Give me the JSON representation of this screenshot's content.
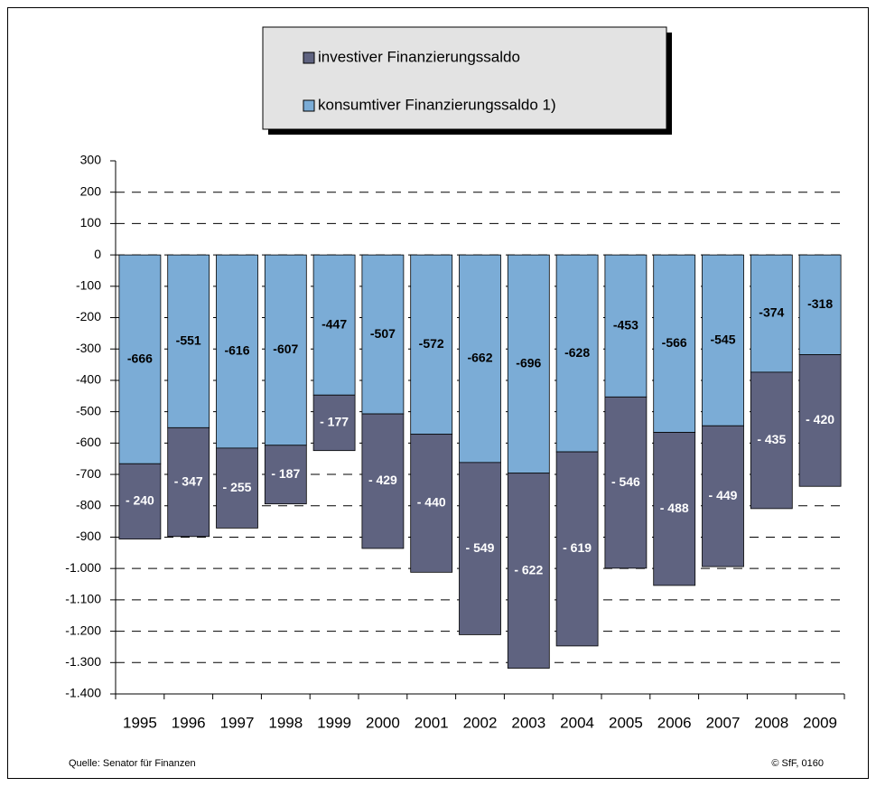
{
  "chart_data": {
    "type": "stacked_bar",
    "categories": [
      "1995",
      "1996",
      "1997",
      "1998",
      "1999",
      "2000",
      "2001",
      "2002",
      "2003",
      "2004",
      "2005",
      "2006",
      "2007",
      "2008",
      "2009"
    ],
    "series": [
      {
        "name": "investiver Finanzierungssaldo",
        "color": "#5f6380",
        "values": [
          -240,
          -347,
          -255,
          -187,
          -177,
          -429,
          -440,
          -549,
          -622,
          -619,
          -546,
          -488,
          -449,
          -435,
          -420
        ],
        "value_labels": [
          "- 240",
          "- 347",
          "- 255",
          "- 187",
          "- 177",
          "- 429",
          "- 440",
          "- 549",
          "- 622",
          "- 619",
          "- 546",
          "- 488",
          "- 449",
          "- 435",
          "- 420"
        ]
      },
      {
        "name": "konsumtiver Finanzierungssaldo  1)",
        "color": "#7bacd6",
        "values": [
          -666,
          -551,
          -616,
          -607,
          -447,
          -507,
          -572,
          -662,
          -696,
          -628,
          -453,
          -566,
          -545,
          -374,
          -318
        ]
      }
    ],
    "ylim": [
      -1400,
      300
    ],
    "yticks": [
      300,
      200,
      100,
      0,
      -100,
      -200,
      -300,
      -400,
      -500,
      -600,
      -700,
      -800,
      -900,
      {
        "value": -1000,
        "label": "-1.000"
      },
      {
        "value": -1100,
        "label": "-1.100"
      },
      {
        "value": -1200,
        "label": "-1.200"
      },
      {
        "value": -1300,
        "label": "-1.300"
      },
      {
        "value": -1400,
        "label": "-1.400"
      }
    ],
    "grid": true,
    "legend": "top",
    "source": "Quelle: Senator für Finanzen",
    "copyright": "© SfF, 0160"
  }
}
